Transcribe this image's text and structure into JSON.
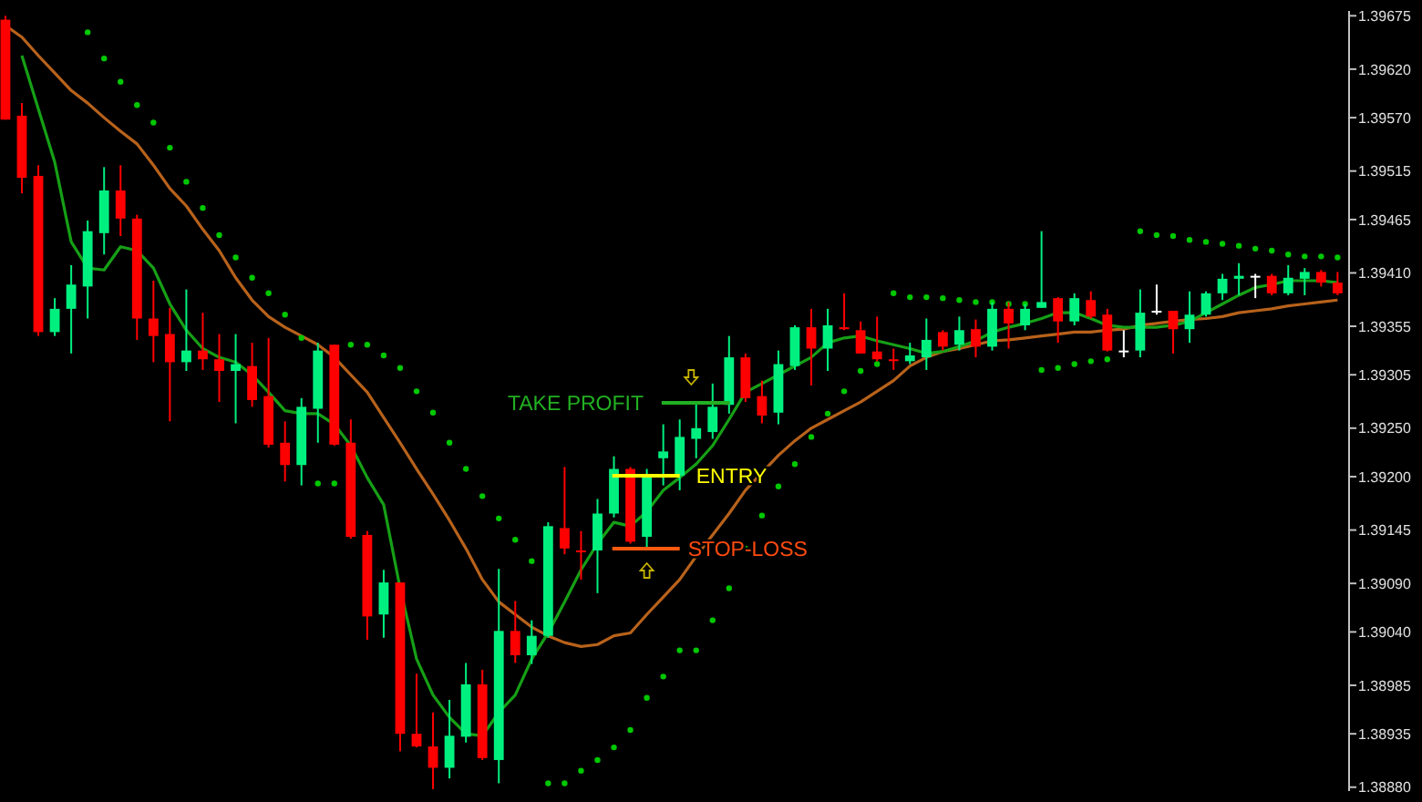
{
  "chart_data": {
    "type": "candlestick",
    "categories": [
      null,
      null,
      null,
      null,
      null,
      null,
      null,
      null,
      null,
      null,
      null,
      null,
      null,
      null,
      null,
      null,
      null,
      null,
      null,
      null,
      null,
      null,
      null,
      null,
      null,
      null,
      null,
      null,
      null,
      null,
      null,
      null,
      null,
      null,
      null,
      null,
      null,
      null,
      null,
      null,
      null,
      null,
      null,
      null,
      null,
      null,
      null,
      null,
      null,
      null,
      null,
      null,
      null,
      null,
      null,
      null,
      null,
      null,
      null,
      null,
      null,
      null,
      null,
      null,
      null,
      null,
      null,
      null,
      null,
      null,
      null,
      null,
      null,
      null,
      null,
      null,
      null,
      null,
      null,
      null,
      null,
      null
    ],
    "ohlc": [
      [
        1.39671,
        1.39675,
        1.39568,
        1.39568
      ],
      [
        1.39572,
        1.39585,
        1.39492,
        1.39508
      ],
      [
        1.3951,
        1.39521,
        1.39345,
        1.39349
      ],
      [
        1.39349,
        1.39384,
        1.39345,
        1.39373
      ],
      [
        1.39373,
        1.39418,
        1.39327,
        1.39398
      ],
      [
        1.39396,
        1.39464,
        1.39363,
        1.39453
      ],
      [
        1.39451,
        1.39519,
        1.39429,
        1.39495
      ],
      [
        1.39495,
        1.39521,
        1.39448,
        1.39466
      ],
      [
        1.39466,
        1.3947,
        1.39341,
        1.39363
      ],
      [
        1.39363,
        1.39402,
        1.39318,
        1.39345
      ],
      [
        1.39347,
        1.39374,
        1.39257,
        1.39318
      ],
      [
        1.39318,
        1.39393,
        1.39309,
        1.3933
      ],
      [
        1.3933,
        1.39369,
        1.3931,
        1.39321
      ],
      [
        1.39321,
        1.39347,
        1.39277,
        1.39309
      ],
      [
        1.39309,
        1.39347,
        1.39255,
        1.39316
      ],
      [
        1.39314,
        1.39338,
        1.39272,
        1.39279
      ],
      [
        1.39283,
        1.39343,
        1.3923,
        1.39233
      ],
      [
        1.39235,
        1.39257,
        1.39195,
        1.39212
      ],
      [
        1.39212,
        1.39281,
        1.39191,
        1.39272
      ],
      [
        1.3927,
        1.39338,
        1.39235,
        1.3933
      ],
      [
        1.39336,
        1.39336,
        1.39232,
        1.39233
      ],
      [
        1.39235,
        1.39259,
        1.39136,
        1.39138
      ],
      [
        1.3914,
        1.39144,
        1.39032,
        1.39056
      ],
      [
        1.39058,
        1.39104,
        1.39034,
        1.39091
      ],
      [
        1.39091,
        1.39091,
        1.38917,
        1.38935
      ],
      [
        1.38935,
        1.38997,
        1.38921,
        1.38922
      ],
      [
        1.38922,
        1.38957,
        1.38878,
        1.389
      ],
      [
        1.389,
        1.3897,
        1.38889,
        1.38933
      ],
      [
        1.38932,
        1.39008,
        1.38926,
        1.38986
      ],
      [
        1.38986,
        1.39001,
        1.38908,
        1.3891
      ],
      [
        1.38908,
        1.39105,
        1.38884,
        1.39041
      ],
      [
        1.39041,
        1.39072,
        1.39008,
        1.39016
      ],
      [
        1.39016,
        1.39052,
        1.39007,
        1.39036
      ],
      [
        1.39036,
        1.39153,
        1.39034,
        1.39149
      ],
      [
        1.39147,
        1.3921,
        1.3912,
        1.39126
      ],
      [
        1.39124,
        1.39144,
        1.39094,
        1.39124
      ],
      [
        1.39124,
        1.39177,
        1.3908,
        1.39162
      ],
      [
        1.39162,
        1.39221,
        1.39158,
        1.39208
      ],
      [
        1.39208,
        1.3921,
        1.39131,
        1.39133
      ],
      [
        1.39138,
        1.39208,
        1.39127,
        1.39201
      ],
      [
        1.39219,
        1.39254,
        1.39191,
        1.39226
      ],
      [
        1.39201,
        1.39259,
        1.39186,
        1.39241
      ],
      [
        1.39239,
        1.39277,
        1.39219,
        1.3925
      ],
      [
        1.39246,
        1.39296,
        1.39239,
        1.39272
      ],
      [
        1.39274,
        1.39345,
        1.39265,
        1.39323
      ],
      [
        1.39323,
        1.39327,
        1.39277,
        1.39281
      ],
      [
        1.39283,
        1.39299,
        1.39255,
        1.39263
      ],
      [
        1.39266,
        1.3933,
        1.39254,
        1.39316
      ],
      [
        1.39314,
        1.39356,
        1.3931,
        1.39354
      ],
      [
        1.39354,
        1.39373,
        1.39294,
        1.39332
      ],
      [
        1.39332,
        1.39373,
        1.39309,
        1.39356
      ],
      [
        1.39354,
        1.39389,
        1.39351,
        1.39352
      ],
      [
        1.39351,
        1.3936,
        1.39327,
        1.39327
      ],
      [
        1.39329,
        1.39365,
        1.39319,
        1.39321
      ],
      [
        1.39321,
        1.39332,
        1.3931,
        1.39321
      ],
      [
        1.39319,
        1.39338,
        1.39316,
        1.39325
      ],
      [
        1.39323,
        1.39363,
        1.3931,
        1.39341
      ],
      [
        1.39349,
        1.39351,
        1.3933,
        1.39334
      ],
      [
        1.39336,
        1.39365,
        1.3933,
        1.39351
      ],
      [
        1.39352,
        1.39362,
        1.39323,
        1.39334
      ],
      [
        1.39334,
        1.3938,
        1.3933,
        1.39373
      ],
      [
        1.39373,
        1.3938,
        1.39332,
        1.39358
      ],
      [
        1.39356,
        1.39378,
        1.39351,
        1.39373
      ],
      [
        1.39374,
        1.39453,
        1.39374,
        1.3938
      ],
      [
        1.39384,
        1.39385,
        1.39338,
        1.3936
      ],
      [
        1.3936,
        1.39389,
        1.39356,
        1.39384
      ],
      [
        1.39382,
        1.39391,
        1.39363,
        1.39365
      ],
      [
        1.39367,
        1.39373,
        1.39329,
        1.3933
      ],
      [
        1.3933,
        1.39351,
        1.39323,
        1.3933
      ],
      [
        1.3933,
        1.39393,
        1.39323,
        1.39369
      ],
      [
        1.39371,
        1.39398,
        1.39367,
        1.39371
      ],
      [
        1.39371,
        1.39371,
        1.39327,
        1.39352
      ],
      [
        1.39352,
        1.39391,
        1.39338,
        1.39367
      ],
      [
        1.39367,
        1.39391,
        1.39365,
        1.39389
      ],
      [
        1.39389,
        1.39409,
        1.39382,
        1.39404
      ],
      [
        1.39404,
        1.3942,
        1.39387,
        1.39407
      ],
      [
        1.39407,
        1.39409,
        1.39384,
        1.39407
      ],
      [
        1.39407,
        1.39409,
        1.39387,
        1.39389
      ],
      [
        1.39389,
        1.39418,
        1.39387,
        1.39405
      ],
      [
        1.39404,
        1.39415,
        1.39387,
        1.39411
      ],
      [
        1.39411,
        1.39413,
        1.39396,
        1.394
      ],
      [
        1.394,
        1.39411,
        1.39387,
        1.39389
      ]
    ],
    "colors": [
      "#ff0000",
      "#ff0000",
      "#ff0000",
      "#00f080",
      "#00f080",
      "#00f080",
      "#00f080",
      "#ff0000",
      "#ff0000",
      "#ff0000",
      "#ff0000",
      "#00f080",
      "#ff0000",
      "#ff0000",
      "#00f080",
      "#ff0000",
      "#ff0000",
      "#ff0000",
      "#00f080",
      "#00f080",
      "#ff0000",
      "#ff0000",
      "#ff0000",
      "#00f080",
      "#ff0000",
      "#ff0000",
      "#ff0000",
      "#00f080",
      "#00f080",
      "#ff0000",
      "#00f080",
      "#ff0000",
      "#00f080",
      "#00f080",
      "#ff0000",
      "#ff0000",
      "#00f080",
      "#00f080",
      "#ff0000",
      "#00f080",
      "#00f080",
      "#00f080",
      "#00f080",
      "#00f080",
      "#00f080",
      "#ff0000",
      "#ff0000",
      "#00f080",
      "#00f080",
      "#ff0000",
      "#00f080",
      "#ff0000",
      "#ff0000",
      "#ff0000",
      "#ff0000",
      "#00f080",
      "#00f080",
      "#ff0000",
      "#00f080",
      "#ff0000",
      "#00f080",
      "#ff0000",
      "#00f080",
      "#00f080",
      "#ff0000",
      "#00f080",
      "#ff0000",
      "#ff0000",
      "#ffffff",
      "#00f080",
      "#ffffff",
      "#ff0000",
      "#00f080",
      "#00f080",
      "#00f080",
      "#00f080",
      "#ffffff",
      "#ff0000",
      "#00f080",
      "#00f080",
      "#ff0000",
      "#ff0000"
    ],
    "series": [
      {
        "type": "line",
        "color": "#b8621b",
        "values": [
          1.39665,
          1.39653,
          1.39634,
          1.39616,
          1.39598,
          1.39585,
          1.3957,
          1.39556,
          1.39543,
          1.39521,
          1.39497,
          1.39479,
          1.39455,
          1.39433,
          1.39405,
          1.39382,
          1.39365,
          1.39354,
          1.39345,
          1.39336,
          1.39323,
          1.39305,
          1.39287,
          1.39261,
          1.39235,
          1.39208,
          1.39182,
          1.39155,
          1.39126,
          1.39094,
          1.39071,
          1.39058,
          1.39045,
          1.39036,
          1.39029,
          1.39025,
          1.39027,
          1.39036,
          1.39039,
          1.39058,
          1.39076,
          1.39094,
          1.39118,
          1.3914,
          1.39162,
          1.39186,
          1.39204,
          1.39222,
          1.39237,
          1.3925,
          1.39259,
          1.39268,
          1.39277,
          1.39288,
          1.39299,
          1.39314,
          1.39323,
          1.39329,
          1.39332,
          1.39336,
          1.3934,
          1.39341,
          1.39343,
          1.39345,
          1.39347,
          1.39349,
          1.39349,
          1.39351,
          1.39352,
          1.39356,
          1.39358,
          1.3936,
          1.39362,
          1.39363,
          1.39365,
          1.39369,
          1.39371,
          1.39373,
          1.39376,
          1.39378,
          1.3938,
          1.39382
        ]
      },
      {
        "type": "line",
        "color": "#16a016",
        "values": [
          null,
          1.39634,
          1.39579,
          1.39524,
          1.39442,
          1.39415,
          1.39413,
          1.39437,
          1.39433,
          1.39415,
          1.39378,
          1.39351,
          1.39332,
          1.39323,
          1.39318,
          1.39305,
          1.39287,
          1.39268,
          1.39265,
          1.39265,
          1.39254,
          1.39232,
          1.39199,
          1.39171,
          1.39085,
          1.39012,
          1.38975,
          1.38952,
          1.38935,
          1.38933,
          1.38957,
          1.38975,
          1.39012,
          1.39039,
          1.39071,
          1.39104,
          1.39131,
          1.39153,
          1.39149,
          1.39164,
          1.39186,
          1.39199,
          1.39213,
          1.39232,
          1.39259,
          1.39287,
          1.39296,
          1.39305,
          1.39314,
          1.39323,
          1.39338,
          1.39343,
          1.39345,
          1.3934,
          1.39336,
          1.39332,
          1.39327,
          1.39329,
          1.39334,
          1.3934,
          1.39349,
          1.39354,
          1.39358,
          1.39363,
          1.39369,
          1.39369,
          1.39363,
          1.39356,
          1.39354,
          1.39354,
          1.39354,
          1.39356,
          1.3936,
          1.39369,
          1.39378,
          1.39387,
          1.39395,
          1.39398,
          1.39402,
          1.39402,
          1.39402,
          1.394
        ]
      },
      {
        "type": "scatter",
        "color": "#00c800",
        "marker": "circle",
        "values": [
          null,
          null,
          null,
          null,
          null,
          1.39658,
          1.39631,
          1.39607,
          1.39583,
          1.39565,
          1.39539,
          1.39504,
          1.39477,
          1.39449,
          1.39426,
          1.39405,
          1.39389,
          1.39367,
          1.39343,
          1.39193,
          1.39193,
          1.39336,
          1.39336,
          1.39325,
          1.39312,
          1.39288,
          1.39266,
          1.39235,
          1.39208,
          1.3918,
          1.39157,
          1.39135,
          1.39113,
          1.38884,
          1.38884,
          1.38897,
          1.38908,
          1.38921,
          1.38939,
          1.38972,
          1.38994,
          1.39021,
          1.39021,
          1.39052,
          1.39085,
          1.39126,
          1.3916,
          1.3919,
          1.39213,
          1.39241,
          1.39265,
          1.39288,
          1.39309,
          1.39316,
          1.39389,
          1.39385,
          1.39385,
          1.39384,
          1.39382,
          1.3938,
          1.3938,
          1.39378,
          1.39378,
          1.3931,
          1.39312,
          1.39316,
          1.39319,
          1.39321,
          null,
          1.39453,
          1.39449,
          1.39448,
          1.39444,
          1.39442,
          1.3944,
          1.39438,
          1.39435,
          1.39433,
          1.39429,
          1.39427,
          1.39427,
          1.39426
        ]
      }
    ],
    "annotations": [
      "TAKE PROFIT",
      "ENTRY",
      "STOP-LOSS"
    ],
    "ylim": [
      1.38876,
      1.3968
    ],
    "yticks": [
      1.39675,
      {
        "value": 1.3962,
        "label": "1.39620"
      },
      {
        "value": 1.3957,
        "label": "1.39570"
      },
      1.39515,
      1.39465,
      {
        "value": 1.3941,
        "label": "1.39410"
      },
      1.39355,
      1.39305,
      {
        "value": 1.3925,
        "label": "1.39250"
      },
      {
        "value": 1.392,
        "label": "1.39200"
      },
      1.39145,
      {
        "value": 1.3909,
        "label": "1.39090"
      },
      {
        "value": 1.3904,
        "label": "1.39040"
      },
      1.38985,
      1.38935,
      {
        "value": 1.3888,
        "label": "1.38880"
      }
    ],
    "tick_labels": "y"
  }
}
